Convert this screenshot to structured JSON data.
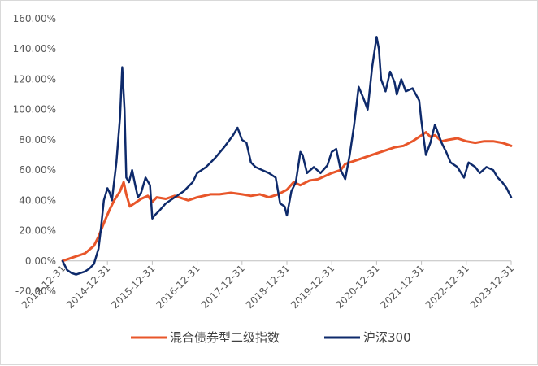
{
  "chart_data": {
    "type": "line",
    "title": "",
    "xlabel": "",
    "ylabel": "",
    "ylim": [
      -20,
      160
    ],
    "y_ticks": [
      "160.00%",
      "140.00%",
      "120.00%",
      "100.00%",
      "80.00%",
      "60.00%",
      "40.00%",
      "20.00%",
      "0.00%",
      "-20.00%"
    ],
    "y_tick_values": [
      160,
      140,
      120,
      100,
      80,
      60,
      40,
      20,
      0,
      -20
    ],
    "x_tick_labels": [
      "2013-12-31",
      "2014-12-31",
      "2015-12-31",
      "2016-12-31",
      "2017-12-31",
      "2018-12-31",
      "2019-12-31",
      "2020-12-31",
      "2021-12-31",
      "2022-12-31",
      "2023-12-31"
    ],
    "x_tick_values": [
      2014.0,
      2015.0,
      2016.0,
      2017.0,
      2018.0,
      2019.0,
      2020.0,
      2021.0,
      2022.0,
      2023.0,
      2024.0
    ],
    "grid": false,
    "legend_position": "bottom",
    "series": [
      {
        "name": "混合债券型二级指数",
        "color": "#E8562A",
        "x": [
          2014.0,
          2014.2,
          2014.5,
          2014.7,
          2014.8,
          2014.92,
          2015.05,
          2015.15,
          2015.28,
          2015.36,
          2015.42,
          2015.5,
          2015.6,
          2015.75,
          2015.9,
          2016.0,
          2016.1,
          2016.3,
          2016.5,
          2016.8,
          2017.0,
          2017.3,
          2017.5,
          2017.75,
          2018.0,
          2018.2,
          2018.4,
          2018.6,
          2018.8,
          2019.0,
          2019.15,
          2019.3,
          2019.5,
          2019.7,
          2020.0,
          2020.2,
          2020.3,
          2020.5,
          2020.7,
          2021.0,
          2021.2,
          2021.4,
          2021.6,
          2021.8,
          2021.95,
          2022.1,
          2022.2,
          2022.3,
          2022.45,
          2022.6,
          2022.8,
          2023.0,
          2023.2,
          2023.4,
          2023.6,
          2023.8,
          2024.0
        ],
        "y": [
          0,
          2,
          5,
          10,
          16,
          25,
          34,
          40,
          46,
          52,
          44,
          36,
          38,
          41,
          43,
          39,
          42,
          41,
          43,
          40,
          42,
          44,
          44,
          45,
          44,
          43,
          44,
          42,
          44,
          47,
          52,
          50,
          53,
          54,
          58,
          60,
          64,
          66,
          68,
          71,
          73,
          75,
          76,
          79,
          82,
          85,
          82,
          83,
          79,
          80,
          81,
          79,
          78,
          79,
          79,
          78,
          76
        ]
      },
      {
        "name": "沪深300",
        "color": "#0E2A6B",
        "x": [
          2014.0,
          2014.1,
          2014.2,
          2014.3,
          2014.4,
          2014.5,
          2014.6,
          2014.7,
          2014.8,
          2014.85,
          2014.92,
          2015.0,
          2015.05,
          2015.1,
          2015.2,
          2015.28,
          2015.33,
          2015.38,
          2015.42,
          2015.48,
          2015.55,
          2015.62,
          2015.68,
          2015.75,
          2015.85,
          2015.95,
          2016.0,
          2016.05,
          2016.15,
          2016.3,
          2016.5,
          2016.7,
          2016.9,
          2017.0,
          2017.2,
          2017.4,
          2017.6,
          2017.8,
          2017.9,
          2018.0,
          2018.1,
          2018.2,
          2018.3,
          2018.45,
          2018.6,
          2018.75,
          2018.85,
          2018.95,
          2019.0,
          2019.1,
          2019.2,
          2019.3,
          2019.35,
          2019.45,
          2019.6,
          2019.75,
          2019.9,
          2020.0,
          2020.1,
          2020.2,
          2020.3,
          2020.4,
          2020.5,
          2020.6,
          2020.7,
          2020.8,
          2020.9,
          2021.0,
          2021.05,
          2021.1,
          2021.2,
          2021.3,
          2021.4,
          2021.45,
          2021.55,
          2021.65,
          2021.8,
          2021.95,
          2022.0,
          2022.1,
          2022.2,
          2022.3,
          2022.45,
          2022.55,
          2022.65,
          2022.8,
          2022.95,
          2023.05,
          2023.2,
          2023.3,
          2023.45,
          2023.6,
          2023.7,
          2023.8,
          2023.9,
          2024.0
        ],
        "y": [
          0,
          -6,
          -8,
          -9,
          -8,
          -7,
          -5,
          -2,
          8,
          20,
          40,
          48,
          45,
          40,
          65,
          95,
          128,
          100,
          55,
          52,
          60,
          50,
          42,
          45,
          55,
          50,
          28,
          30,
          33,
          38,
          42,
          46,
          52,
          58,
          62,
          68,
          75,
          83,
          88,
          80,
          78,
          65,
          62,
          60,
          58,
          55,
          38,
          36,
          30,
          46,
          52,
          72,
          70,
          58,
          62,
          58,
          63,
          72,
          74,
          60,
          54,
          70,
          90,
          115,
          108,
          100,
          128,
          148,
          140,
          120,
          112,
          125,
          118,
          110,
          120,
          112,
          114,
          106,
          92,
          70,
          78,
          90,
          78,
          72,
          65,
          62,
          55,
          65,
          62,
          58,
          62,
          60,
          55,
          52,
          48,
          42
        ]
      }
    ]
  }
}
